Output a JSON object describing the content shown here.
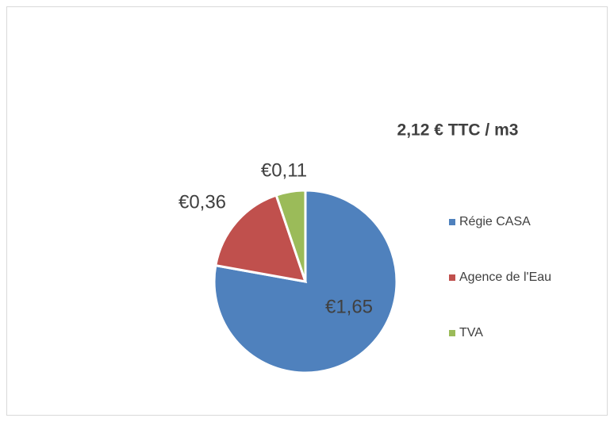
{
  "chart_data": {
    "type": "pie",
    "title": "2,12 € TTC / m3",
    "categories": [
      "Régie CASA",
      "Agence de l'Eau",
      "TVA"
    ],
    "values": [
      1.65,
      0.36,
      0.11
    ],
    "value_labels": [
      "€1,65",
      "€0,36",
      "€0,11"
    ],
    "colors": [
      "#4f81bd",
      "#c0504d",
      "#9bbb59"
    ],
    "legend": "right"
  }
}
